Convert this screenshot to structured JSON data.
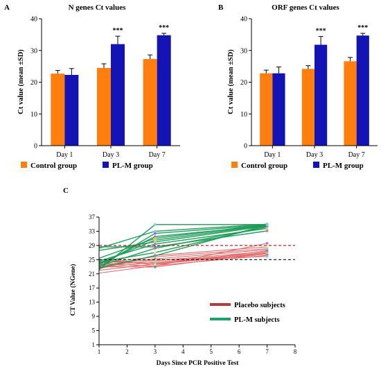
{
  "figure": {
    "panel_labels": [
      "A",
      "B",
      "C"
    ]
  },
  "colors": {
    "control": "#ff7f0e",
    "plm": "#1414b4",
    "placebo_line": "#e06060",
    "plm_line": "#1a9a55",
    "placebo_legend": "#b93a3a",
    "plm_legend": "#22a06b",
    "ref_red": "#cc2222",
    "ref_black": "#111111"
  },
  "chart_data": [
    {
      "panel": "A",
      "type": "bar",
      "title": "N genes Ct values",
      "ylabel": "Ct value (mean ±SD)",
      "ylim": [
        0,
        40
      ],
      "yticks": [
        "0",
        "10",
        "20",
        "30",
        "40"
      ],
      "categories": [
        "Day 1",
        "Day 3",
        "Day 7"
      ],
      "series": [
        {
          "name": "Control group",
          "values": [
            22.7,
            24.5,
            27.3
          ],
          "sd": [
            1.0,
            1.3,
            1.3
          ]
        },
        {
          "name": "PL-M group",
          "values": [
            22.3,
            32.0,
            34.8
          ],
          "sd": [
            2.0,
            2.5,
            0.6
          ]
        }
      ],
      "annotations": [
        "",
        "***",
        "***"
      ],
      "legend": "bottom"
    },
    {
      "panel": "B",
      "type": "bar",
      "title": "ORF genes Ct values",
      "ylabel": "Ct value (mean ±SD)",
      "ylim": [
        0,
        40
      ],
      "yticks": [
        "0",
        "10",
        "20",
        "30",
        "40"
      ],
      "categories": [
        "Day 1",
        "Day 3",
        "Day 7"
      ],
      "series": [
        {
          "name": "Control group",
          "values": [
            22.8,
            24.2,
            26.6
          ],
          "sd": [
            1.0,
            1.0,
            1.2
          ]
        },
        {
          "name": "PL-M group",
          "values": [
            22.8,
            31.8,
            34.7
          ],
          "sd": [
            2.0,
            2.6,
            0.7
          ]
        }
      ],
      "annotations": [
        "",
        "***",
        "***"
      ],
      "legend": "bottom"
    },
    {
      "panel": "C",
      "type": "line",
      "xlabel": "Days Since PCR Positive Test",
      "ylabel": "CT Value (NGene)",
      "xlim": [
        1,
        8
      ],
      "ylim": [
        1,
        37
      ],
      "xticks": [
        "1",
        "2",
        "3",
        "4",
        "5",
        "6",
        "7",
        "8"
      ],
      "yticks": [
        "1",
        "5",
        "9",
        "13",
        "17",
        "21",
        "25",
        "29",
        "33",
        "37"
      ],
      "x": [
        1,
        3,
        7
      ],
      "reference_lines": [
        {
          "y": 29,
          "color": "red",
          "style": "dashed"
        },
        {
          "y": 25,
          "color": "black",
          "style": "dashed"
        }
      ],
      "legend": "right",
      "series": [
        {
          "name": "Placebo subjects",
          "lines": [
            [
              21.2,
              23.3,
              26.2
            ],
            [
              22.0,
              23.8,
              26.5
            ],
            [
              22.7,
              24.3,
              27.0
            ],
            [
              23.2,
              24.7,
              27.3
            ],
            [
              23.5,
              25.2,
              27.8
            ],
            [
              24.0,
              25.8,
              28.1
            ],
            [
              24.5,
              24.0,
              26.8
            ],
            [
              23.8,
              23.2,
              29.6
            ],
            [
              22.4,
              26.2,
              28.6
            ],
            [
              25.0,
              23.6,
              27.5
            ],
            [
              23.0,
              22.9,
              26.9
            ],
            [
              24.2,
              24.9,
              25.9
            ]
          ]
        },
        {
          "name": "PL-M subjects",
          "lines": [
            [
              22.2,
              34.9,
              34.9
            ],
            [
              23.0,
              32.4,
              34.8
            ],
            [
              23.6,
              31.5,
              34.6
            ],
            [
              24.0,
              30.5,
              34.7
            ],
            [
              24.6,
              29.4,
              33.8
            ],
            [
              27.6,
              30.0,
              34.5
            ],
            [
              28.2,
              33.0,
              35.0
            ],
            [
              28.6,
              28.6,
              33.1
            ],
            [
              23.2,
              28.2,
              34.2
            ],
            [
              24.3,
              27.0,
              34.4
            ],
            [
              22.7,
              26.1,
              34.8
            ],
            [
              25.4,
              31.0,
              34.9
            ]
          ]
        }
      ]
    }
  ]
}
